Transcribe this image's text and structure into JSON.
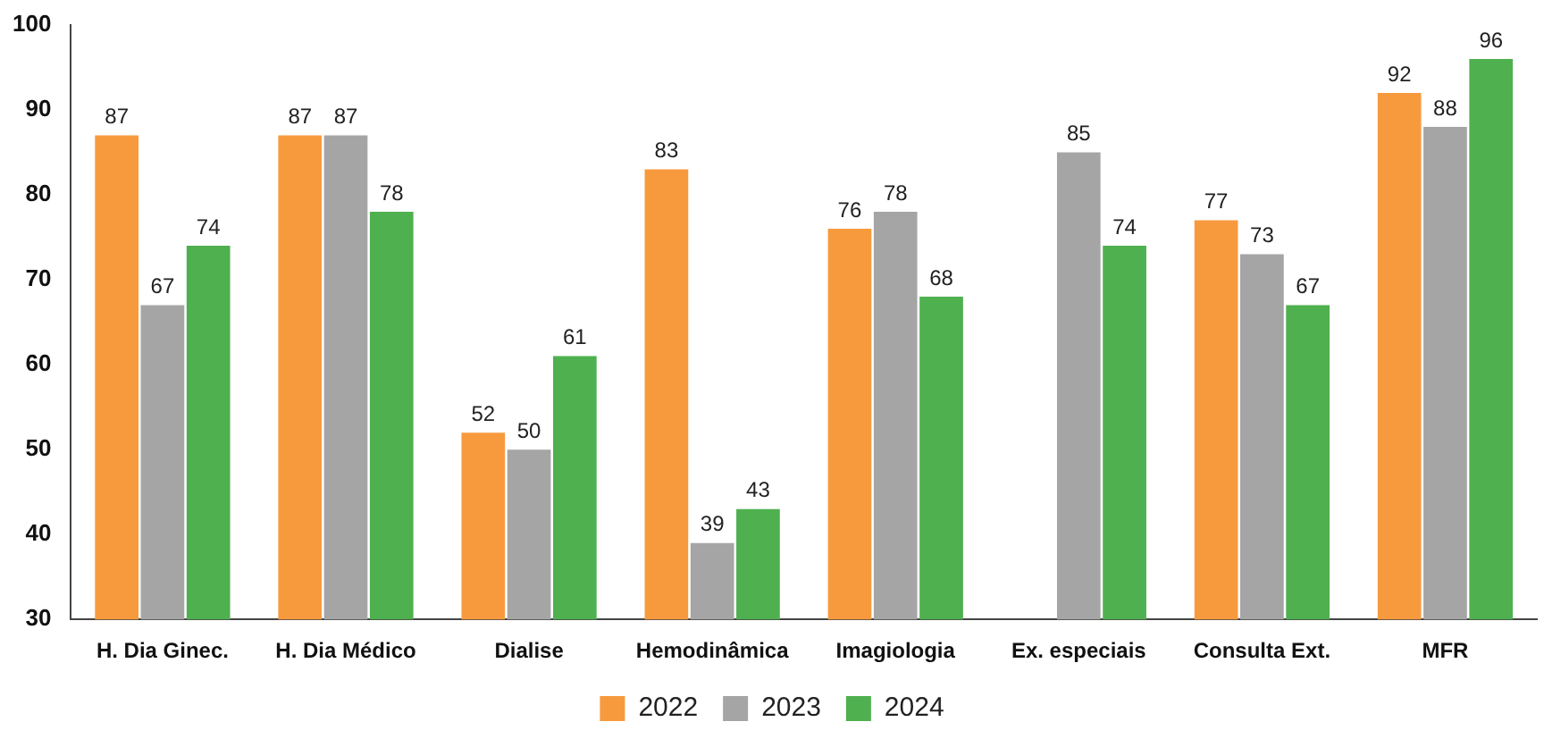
{
  "chart_data": {
    "type": "bar",
    "categories": [
      "H. Dia Ginec.",
      "H. Dia Médico",
      "Dialise",
      "Hemodinâmica",
      "Imagiologia",
      "Ex. especiais",
      "Consulta Ext.",
      "MFR"
    ],
    "series": [
      {
        "name": "2022",
        "color": "#f79a3e",
        "values": [
          87,
          87,
          52,
          83,
          76,
          null,
          77,
          92
        ]
      },
      {
        "name": "2023",
        "color": "#a5a5a5",
        "values": [
          67,
          87,
          50,
          39,
          78,
          85,
          73,
          88
        ]
      },
      {
        "name": "2024",
        "color": "#4fb04f",
        "values": [
          74,
          78,
          61,
          43,
          68,
          74,
          67,
          96
        ]
      }
    ],
    "ylim": [
      30,
      100
    ],
    "yticks": [
      30,
      40,
      50,
      60,
      70,
      80,
      90,
      100
    ],
    "grid": false,
    "legend": "bottom",
    "data_labels": true
  }
}
